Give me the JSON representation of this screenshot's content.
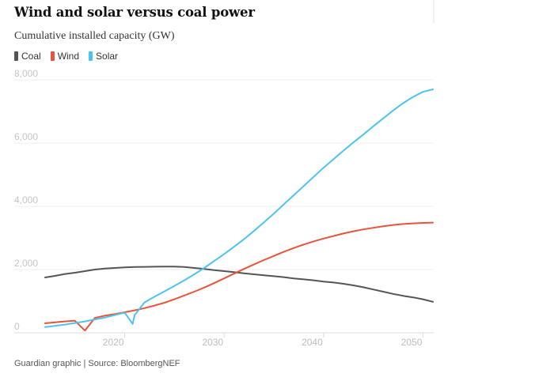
{
  "chart_data": {
    "type": "line",
    "title": "Wind and solar versus coal power",
    "subtitle": "Cumulative installed capacity (GW)",
    "xlabel": "",
    "ylabel": "",
    "xlim": [
      2012,
      2051
    ],
    "ylim": [
      0,
      8000
    ],
    "yticks": [
      0,
      2000,
      4000,
      6000,
      8000
    ],
    "ytick_labels": [
      "0",
      "2,000",
      "4,000",
      "6,000",
      "8,000"
    ],
    "xticks": [
      2020,
      2030,
      2040,
      2050
    ],
    "xtick_labels": [
      "2020",
      "2030",
      "2040",
      "2050"
    ],
    "grid": true,
    "legend_position": "top-left",
    "series": [
      {
        "name": "Coal",
        "color": "#555555",
        "points": [
          [
            2012,
            1750
          ],
          [
            2013,
            1800
          ],
          [
            2014,
            1860
          ],
          [
            2015,
            1900
          ],
          [
            2016,
            1950
          ],
          [
            2017,
            2000
          ],
          [
            2018,
            2030
          ],
          [
            2019,
            2050
          ],
          [
            2020,
            2070
          ],
          [
            2021,
            2080
          ],
          [
            2022,
            2085
          ],
          [
            2023,
            2090
          ],
          [
            2024,
            2095
          ],
          [
            2025,
            2095
          ],
          [
            2026,
            2080
          ],
          [
            2027,
            2050
          ],
          [
            2028,
            2020
          ],
          [
            2029,
            1980
          ],
          [
            2030,
            1950
          ],
          [
            2031,
            1920
          ],
          [
            2032,
            1880
          ],
          [
            2033,
            1850
          ],
          [
            2034,
            1820
          ],
          [
            2035,
            1790
          ],
          [
            2036,
            1760
          ],
          [
            2037,
            1720
          ],
          [
            2038,
            1690
          ],
          [
            2039,
            1660
          ],
          [
            2040,
            1620
          ],
          [
            2041,
            1590
          ],
          [
            2042,
            1550
          ],
          [
            2043,
            1500
          ],
          [
            2044,
            1440
          ],
          [
            2045,
            1370
          ],
          [
            2046,
            1300
          ],
          [
            2047,
            1230
          ],
          [
            2048,
            1170
          ],
          [
            2049,
            1120
          ],
          [
            2050,
            1060
          ],
          [
            2051,
            980
          ]
        ]
      },
      {
        "name": "Wind",
        "color": "#e9533a",
        "points": [
          [
            2012,
            300
          ],
          [
            2013,
            330
          ],
          [
            2014,
            360
          ],
          [
            2015,
            380
          ],
          [
            2016,
            70
          ],
          [
            2017,
            470
          ],
          [
            2018,
            540
          ],
          [
            2019,
            590
          ],
          [
            2020,
            650
          ],
          [
            2021,
            710
          ],
          [
            2022,
            780
          ],
          [
            2023,
            860
          ],
          [
            2024,
            950
          ],
          [
            2025,
            1060
          ],
          [
            2026,
            1180
          ],
          [
            2027,
            1300
          ],
          [
            2028,
            1430
          ],
          [
            2029,
            1570
          ],
          [
            2030,
            1720
          ],
          [
            2031,
            1870
          ],
          [
            2032,
            2020
          ],
          [
            2033,
            2160
          ],
          [
            2034,
            2300
          ],
          [
            2035,
            2430
          ],
          [
            2036,
            2560
          ],
          [
            2037,
            2680
          ],
          [
            2038,
            2790
          ],
          [
            2039,
            2890
          ],
          [
            2040,
            2980
          ],
          [
            2041,
            3060
          ],
          [
            2042,
            3140
          ],
          [
            2043,
            3210
          ],
          [
            2044,
            3270
          ],
          [
            2045,
            3320
          ],
          [
            2046,
            3370
          ],
          [
            2047,
            3410
          ],
          [
            2048,
            3440
          ],
          [
            2049,
            3460
          ],
          [
            2050,
            3475
          ],
          [
            2051,
            3485
          ]
        ]
      },
      {
        "name": "Solar",
        "color": "#4cc3f0",
        "points": [
          [
            2012,
            180
          ],
          [
            2013,
            220
          ],
          [
            2014,
            260
          ],
          [
            2015,
            310
          ],
          [
            2016,
            360
          ],
          [
            2017,
            420
          ],
          [
            2018,
            480
          ],
          [
            2019,
            560
          ],
          [
            2020,
            640
          ],
          [
            2020.8,
            280
          ],
          [
            2021,
            560
          ],
          [
            2022,
            960
          ],
          [
            2023,
            1140
          ],
          [
            2024,
            1310
          ],
          [
            2025,
            1480
          ],
          [
            2026,
            1660
          ],
          [
            2027,
            1850
          ],
          [
            2028,
            2050
          ],
          [
            2029,
            2270
          ],
          [
            2030,
            2490
          ],
          [
            2031,
            2720
          ],
          [
            2032,
            2960
          ],
          [
            2033,
            3220
          ],
          [
            2034,
            3490
          ],
          [
            2035,
            3770
          ],
          [
            2036,
            4060
          ],
          [
            2037,
            4350
          ],
          [
            2038,
            4640
          ],
          [
            2039,
            4930
          ],
          [
            2040,
            5220
          ],
          [
            2041,
            5490
          ],
          [
            2042,
            5760
          ],
          [
            2043,
            6020
          ],
          [
            2044,
            6270
          ],
          [
            2045,
            6530
          ],
          [
            2046,
            6780
          ],
          [
            2047,
            7030
          ],
          [
            2048,
            7260
          ],
          [
            2049,
            7460
          ],
          [
            2050,
            7620
          ],
          [
            2051,
            7700
          ]
        ]
      }
    ]
  },
  "legend": [
    {
      "label": "Coal",
      "color": "#555555"
    },
    {
      "label": "Wind",
      "color": "#e9533a"
    },
    {
      "label": "Solar",
      "color": "#4cc3f0"
    }
  ],
  "footer": "Guardian graphic | Source: BloombergNEF"
}
